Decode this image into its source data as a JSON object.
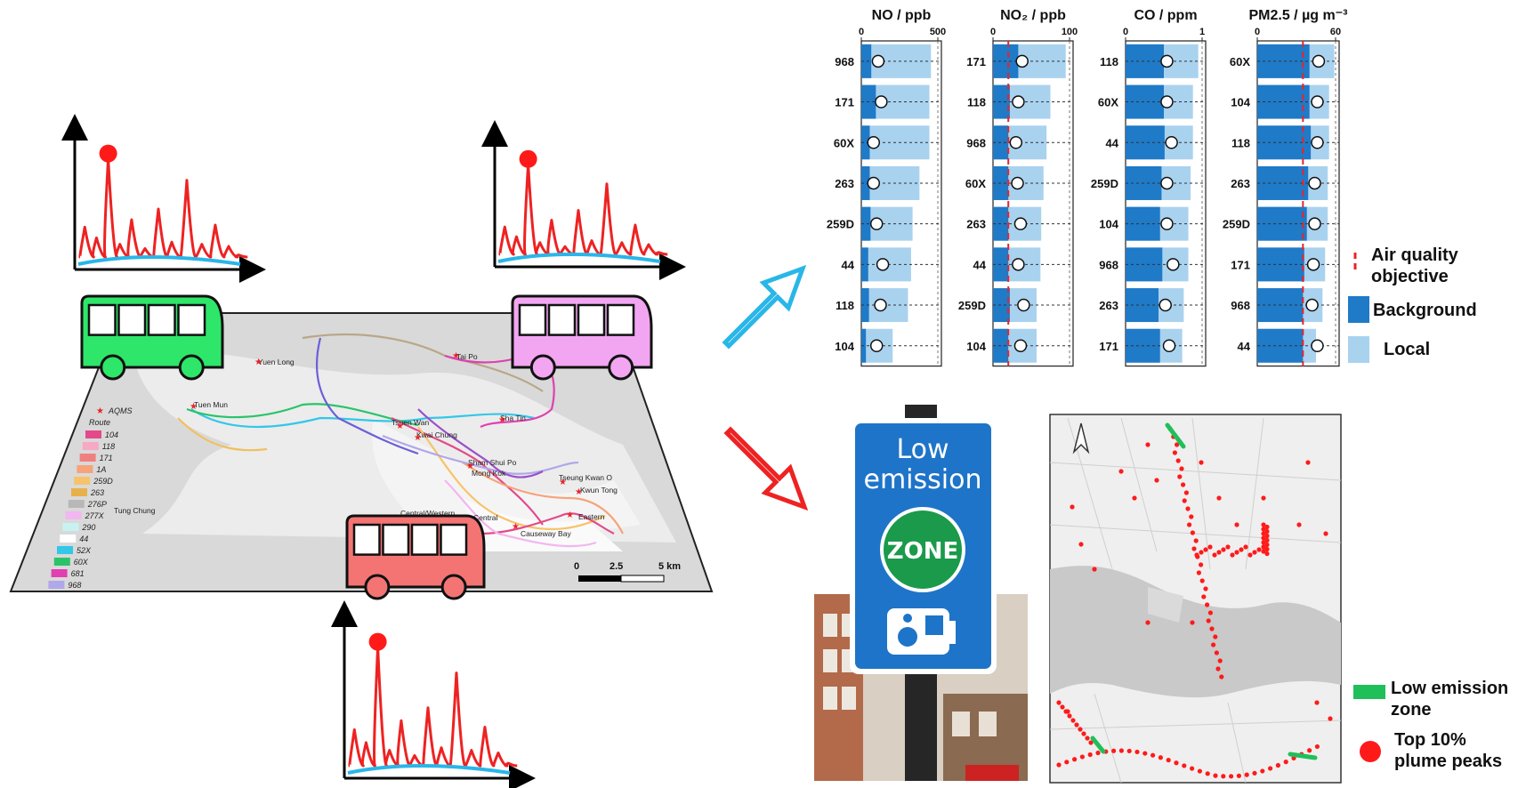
{
  "map": {
    "legend_title": "AQMS",
    "route_title": "Route",
    "routes": [
      {
        "name": "104",
        "color": "#e34a8a"
      },
      {
        "name": "118",
        "color": "#f7a9c4"
      },
      {
        "name": "171",
        "color": "#f08080"
      },
      {
        "name": "1A",
        "color": "#f6a37a"
      },
      {
        "name": "259D",
        "color": "#f6c36a"
      },
      {
        "name": "263",
        "color": "#e8b048"
      },
      {
        "name": "276P",
        "color": "#b8b8b8"
      },
      {
        "name": "277X",
        "color": "#f2b6f0"
      },
      {
        "name": "290",
        "color": "#c8f2f2"
      },
      {
        "name": "44",
        "color": "#ffffff"
      },
      {
        "name": "52X",
        "color": "#33c7e8"
      },
      {
        "name": "60X",
        "color": "#29c46a"
      },
      {
        "name": "681",
        "color": "#e040b0"
      },
      {
        "name": "968",
        "color": "#b0a8e8"
      }
    ],
    "places": [
      "Tai Po",
      "Yuen Long",
      "Tuen Mun",
      "Tsuen Wan",
      "Sha Tin",
      "Kwai Chung",
      "Sham Shui Po",
      "Mong Kok",
      "Tseung Kwan O",
      "Kwun Tong",
      "Tung Chung",
      "Central/Western",
      "Central",
      "Eastern",
      "Causeway Bay"
    ],
    "scale": {
      "labels": [
        "0",
        "2.5",
        "5 km"
      ]
    }
  },
  "legend": {
    "aqo": "Air quality objective",
    "aqo_line1": "Air quality",
    "aqo_line2": "objective",
    "background": "Background",
    "local": "Local",
    "lez_line1": "Low emission",
    "lez_line2": "zone",
    "peaks_line1": "Top 10%",
    "peaks_line2": "plume peaks"
  },
  "sign": {
    "line1": "Low",
    "line2": "emission",
    "zone": "ZONE"
  },
  "colors": {
    "background_bar": "#1f7ac8",
    "local_bar": "#a9d2ef",
    "aqo": "#e8242a",
    "peak": "#ff1a1a",
    "baseline": "#29b6e8",
    "arrow_up": "#29b6e8",
    "arrow_down": "#ee2222",
    "lez": "#1fbf5a"
  },
  "chart_data": [
    {
      "type": "bar",
      "title": "NO / ppb",
      "ticks": [
        "0",
        "500"
      ],
      "xlim": [
        0,
        500
      ],
      "aqo": null,
      "categories": [
        "968",
        "171",
        "60X",
        "263",
        "259D",
        "44",
        "118",
        "104"
      ],
      "series": [
        {
          "name": "Background",
          "values": [
            65,
            95,
            55,
            55,
            60,
            45,
            50,
            30
          ]
        },
        {
          "name": "Local",
          "values": [
            455,
            445,
            445,
            380,
            335,
            325,
            305,
            205
          ]
        }
      ],
      "mean_markers": [
        110,
        130,
        80,
        80,
        100,
        140,
        125,
        100
      ]
    },
    {
      "type": "bar",
      "title": "NO₂ / ppb",
      "ticks": [
        "0",
        "100"
      ],
      "xlim": [
        0,
        100
      ],
      "aqo": 20,
      "categories": [
        "171",
        "118",
        "968",
        "60X",
        "263",
        "44",
        "259D",
        "104"
      ],
      "series": [
        {
          "name": "Background",
          "values": [
            33,
            22,
            20,
            20,
            20,
            20,
            22,
            20
          ]
        },
        {
          "name": "Local",
          "values": [
            95,
            75,
            70,
            66,
            63,
            62,
            57,
            57
          ]
        }
      ],
      "mean_markers": [
        38,
        33,
        30,
        32,
        36,
        33,
        40,
        36
      ]
    },
    {
      "type": "bar",
      "title": "CO / ppm",
      "ticks": [
        "0",
        "1"
      ],
      "xlim": [
        0,
        1
      ],
      "aqo": null,
      "categories": [
        "118",
        "60X",
        "44",
        "259D",
        "104",
        "968",
        "263",
        "171"
      ],
      "series": [
        {
          "name": "Background",
          "values": [
            0.5,
            0.5,
            0.51,
            0.47,
            0.45,
            0.48,
            0.43,
            0.45
          ]
        },
        {
          "name": "Local",
          "values": [
            0.95,
            0.88,
            0.88,
            0.85,
            0.82,
            0.82,
            0.76,
            0.74
          ]
        }
      ],
      "mean_markers": [
        0.54,
        0.54,
        0.6,
        0.54,
        0.54,
        0.62,
        0.52,
        0.57
      ]
    },
    {
      "type": "bar",
      "title": "PM2.5 / µg m⁻³",
      "ticks": [
        "0",
        "60"
      ],
      "xlim": [
        0,
        60
      ],
      "aqo": 35,
      "categories": [
        "60X",
        "104",
        "118",
        "263",
        "259D",
        "171",
        "968",
        "44"
      ],
      "series": [
        {
          "name": "Background",
          "values": [
            40,
            40,
            41,
            39,
            38,
            36,
            35,
            35
          ]
        },
        {
          "name": "Local",
          "values": [
            59,
            55,
            55,
            54,
            54,
            52,
            50,
            45
          ]
        }
      ],
      "mean_markers": [
        47,
        46,
        46,
        44,
        44,
        43,
        42,
        46
      ]
    }
  ]
}
